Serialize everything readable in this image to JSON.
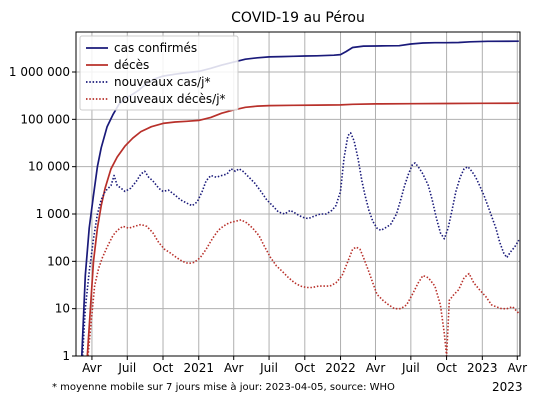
{
  "chart_data": {
    "type": "line",
    "title": "COVID-19 au Pérou",
    "yscale": "log",
    "ylim": [
      1,
      7000000
    ],
    "xlim": [
      "2020-02-20",
      "2023-04-08"
    ],
    "y_ticks": [
      {
        "value": 1,
        "label": "1"
      },
      {
        "value": 10,
        "label": "10"
      },
      {
        "value": 100,
        "label": "100"
      },
      {
        "value": 1000,
        "label": "1 000"
      },
      {
        "value": 10000,
        "label": "10 000"
      },
      {
        "value": 100000,
        "label": "100 000"
      },
      {
        "value": 1000000,
        "label": "1 000 000"
      }
    ],
    "x_ticks": [
      {
        "date": "2020-04-01",
        "label": "Avr"
      },
      {
        "date": "2020-07-01",
        "label": "Juil"
      },
      {
        "date": "2020-10-01",
        "label": "Oct"
      },
      {
        "date": "2021-01-01",
        "label": "2021"
      },
      {
        "date": "2021-04-01",
        "label": "Avr"
      },
      {
        "date": "2021-07-01",
        "label": "Juil"
      },
      {
        "date": "2021-10-01",
        "label": "Oct"
      },
      {
        "date": "2022-01-01",
        "label": "2022"
      },
      {
        "date": "2022-04-01",
        "label": "Avr"
      },
      {
        "date": "2022-07-01",
        "label": "Juil"
      },
      {
        "date": "2022-10-01",
        "label": "Oct"
      },
      {
        "date": "2023-01-01",
        "label": "2023"
      },
      {
        "date": "2023-04-01",
        "label": "Avr"
      }
    ],
    "x_sublabel": "2023",
    "grid": true,
    "legend_position": "top-left",
    "series": [
      {
        "name": "cas confirmés",
        "color": "#1a1a7a",
        "style": "solid",
        "points": [
          [
            "2020-03-06",
            1
          ],
          [
            "2020-03-15",
            50
          ],
          [
            "2020-03-25",
            500
          ],
          [
            "2020-04-05",
            2500
          ],
          [
            "2020-04-15",
            10000
          ],
          [
            "2020-04-25",
            25000
          ],
          [
            "2020-05-10",
            70000
          ],
          [
            "2020-05-25",
            125000
          ],
          [
            "2020-06-10",
            210000
          ],
          [
            "2020-06-25",
            270000
          ],
          [
            "2020-07-15",
            340000
          ],
          [
            "2020-08-01",
            420000
          ],
          [
            "2020-08-20",
            580000
          ],
          [
            "2020-09-10",
            720000
          ],
          [
            "2020-10-01",
            820000
          ],
          [
            "2020-11-01",
            900000
          ],
          [
            "2020-12-01",
            970000
          ],
          [
            "2021-01-01",
            1030000
          ],
          [
            "2021-02-01",
            1200000
          ],
          [
            "2021-03-01",
            1400000
          ],
          [
            "2021-04-01",
            1620000
          ],
          [
            "2021-05-01",
            1860000
          ],
          [
            "2021-06-01",
            2000000
          ],
          [
            "2021-07-01",
            2080000
          ],
          [
            "2021-08-01",
            2120000
          ],
          [
            "2021-09-01",
            2150000
          ],
          [
            "2021-10-01",
            2180000
          ],
          [
            "2021-11-01",
            2200000
          ],
          [
            "2021-12-15",
            2260000
          ],
          [
            "2022-01-01",
            2330000
          ],
          [
            "2022-01-15",
            2700000
          ],
          [
            "2022-02-01",
            3300000
          ],
          [
            "2022-03-01",
            3520000
          ],
          [
            "2022-04-01",
            3550000
          ],
          [
            "2022-05-01",
            3570000
          ],
          [
            "2022-06-01",
            3600000
          ],
          [
            "2022-07-01",
            3900000
          ],
          [
            "2022-08-01",
            4100000
          ],
          [
            "2022-09-01",
            4150000
          ],
          [
            "2022-10-01",
            4160000
          ],
          [
            "2022-11-01",
            4200000
          ],
          [
            "2022-12-01",
            4350000
          ],
          [
            "2023-01-15",
            4450000
          ],
          [
            "2023-04-05",
            4480000
          ]
        ]
      },
      {
        "name": "décès",
        "color": "#b8302a",
        "style": "solid",
        "points": [
          [
            "2020-03-20",
            1
          ],
          [
            "2020-03-28",
            10
          ],
          [
            "2020-04-05",
            100
          ],
          [
            "2020-04-15",
            500
          ],
          [
            "2020-04-25",
            1500
          ],
          [
            "2020-05-05",
            3500
          ],
          [
            "2020-05-20",
            9000
          ],
          [
            "2020-06-05",
            16000
          ],
          [
            "2020-06-25",
            27000
          ],
          [
            "2020-07-15",
            40000
          ],
          [
            "2020-08-05",
            55000
          ],
          [
            "2020-09-01",
            70000
          ],
          [
            "2020-10-01",
            82000
          ],
          [
            "2020-11-01",
            88000
          ],
          [
            "2020-12-01",
            91000
          ],
          [
            "2021-01-01",
            95000
          ],
          [
            "2021-02-01",
            110000
          ],
          [
            "2021-03-01",
            135000
          ],
          [
            "2021-04-01",
            158000
          ],
          [
            "2021-05-01",
            180000
          ],
          [
            "2021-06-01",
            190000
          ],
          [
            "2021-07-01",
            195000
          ],
          [
            "2021-09-01",
            198000
          ],
          [
            "2021-11-01",
            200000
          ],
          [
            "2022-01-01",
            202000
          ],
          [
            "2022-02-01",
            208000
          ],
          [
            "2022-04-01",
            212000
          ],
          [
            "2022-07-01",
            214000
          ],
          [
            "2022-10-01",
            216000
          ],
          [
            "2023-01-01",
            218000
          ],
          [
            "2023-04-05",
            219500
          ]
        ]
      },
      {
        "name": "nouveaux cas/j*",
        "color": "#1a1a7a",
        "style": "dotted",
        "points": [
          [
            "2020-03-08",
            1
          ],
          [
            "2020-03-15",
            10
          ],
          [
            "2020-03-25",
            60
          ],
          [
            "2020-04-05",
            300
          ],
          [
            "2020-04-15",
            1000
          ],
          [
            "2020-04-25",
            2000
          ],
          [
            "2020-05-05",
            3000
          ],
          [
            "2020-05-20",
            4000
          ],
          [
            "2020-05-28",
            6500
          ],
          [
            "2020-06-05",
            4000
          ],
          [
            "2020-06-15",
            3500
          ],
          [
            "2020-06-25",
            3000
          ],
          [
            "2020-07-10",
            3500
          ],
          [
            "2020-07-25",
            5000
          ],
          [
            "2020-08-05",
            7000
          ],
          [
            "2020-08-15",
            8000
          ],
          [
            "2020-08-25",
            6000
          ],
          [
            "2020-09-05",
            5000
          ],
          [
            "2020-09-20",
            3500
          ],
          [
            "2020-10-01",
            3000
          ],
          [
            "2020-10-15",
            3200
          ],
          [
            "2020-11-01",
            2500
          ],
          [
            "2020-11-15",
            2000
          ],
          [
            "2020-12-01",
            1700
          ],
          [
            "2020-12-15",
            1500
          ],
          [
            "2020-12-28",
            1800
          ],
          [
            "2021-01-10",
            3000
          ],
          [
            "2021-01-20",
            5000
          ],
          [
            "2021-02-01",
            6500
          ],
          [
            "2021-02-15",
            6000
          ],
          [
            "2021-03-01",
            6500
          ],
          [
            "2021-03-15",
            7000
          ],
          [
            "2021-03-25",
            9000
          ],
          [
            "2021-04-05",
            8000
          ],
          [
            "2021-04-15",
            9000
          ],
          [
            "2021-04-25",
            8000
          ],
          [
            "2021-05-10",
            6000
          ],
          [
            "2021-05-25",
            4500
          ],
          [
            "2021-06-10",
            3000
          ],
          [
            "2021-06-25",
            2000
          ],
          [
            "2021-07-10",
            1500
          ],
          [
            "2021-07-25",
            1100
          ],
          [
            "2021-08-10",
            1000
          ],
          [
            "2021-08-25",
            1200
          ],
          [
            "2021-09-10",
            1000
          ],
          [
            "2021-09-25",
            850
          ],
          [
            "2021-10-10",
            800
          ],
          [
            "2021-10-25",
            900
          ],
          [
            "2021-11-10",
            1000
          ],
          [
            "2021-11-25",
            1000
          ],
          [
            "2021-12-10",
            1200
          ],
          [
            "2021-12-20",
            1500
          ],
          [
            "2022-01-01",
            3000
          ],
          [
            "2022-01-10",
            15000
          ],
          [
            "2022-01-20",
            45000
          ],
          [
            "2022-01-27",
            52000
          ],
          [
            "2022-02-05",
            35000
          ],
          [
            "2022-02-15",
            15000
          ],
          [
            "2022-02-25",
            5000
          ],
          [
            "2022-03-05",
            2500
          ],
          [
            "2022-03-15",
            1200
          ],
          [
            "2022-03-25",
            700
          ],
          [
            "2022-04-05",
            500
          ],
          [
            "2022-04-15",
            450
          ],
          [
            "2022-04-25",
            500
          ],
          [
            "2022-05-10",
            600
          ],
          [
            "2022-05-25",
            1000
          ],
          [
            "2022-06-05",
            2000
          ],
          [
            "2022-06-15",
            4000
          ],
          [
            "2022-06-25",
            7000
          ],
          [
            "2022-07-05",
            11000
          ],
          [
            "2022-07-12",
            12000
          ],
          [
            "2022-07-20",
            10000
          ],
          [
            "2022-08-01",
            7000
          ],
          [
            "2022-08-15",
            4000
          ],
          [
            "2022-08-25",
            2000
          ],
          [
            "2022-09-05",
            800
          ],
          [
            "2022-09-15",
            400
          ],
          [
            "2022-09-25",
            300
          ],
          [
            "2022-10-05",
            500
          ],
          [
            "2022-10-15",
            1200
          ],
          [
            "2022-10-25",
            3000
          ],
          [
            "2022-11-05",
            6000
          ],
          [
            "2022-11-15",
            9000
          ],
          [
            "2022-11-25",
            10000
          ],
          [
            "2022-12-05",
            8000
          ],
          [
            "2022-12-15",
            6000
          ],
          [
            "2022-12-25",
            4000
          ],
          [
            "2023-01-05",
            2500
          ],
          [
            "2023-01-15",
            1500
          ],
          [
            "2023-01-25",
            900
          ],
          [
            "2023-02-05",
            500
          ],
          [
            "2023-02-15",
            250
          ],
          [
            "2023-02-25",
            150
          ],
          [
            "2023-03-05",
            120
          ],
          [
            "2023-03-15",
            160
          ],
          [
            "2023-03-25",
            200
          ],
          [
            "2023-04-05",
            280
          ]
        ]
      },
      {
        "name": "nouveaux décès/j*",
        "color": "#b8302a",
        "style": "dotted",
        "points": [
          [
            "2020-03-22",
            1
          ],
          [
            "2020-03-30",
            5
          ],
          [
            "2020-04-08",
            30
          ],
          [
            "2020-04-18",
            70
          ],
          [
            "2020-04-28",
            120
          ],
          [
            "2020-05-10",
            200
          ],
          [
            "2020-05-25",
            350
          ],
          [
            "2020-06-05",
            450
          ],
          [
            "2020-06-20",
            550
          ],
          [
            "2020-07-05",
            500
          ],
          [
            "2020-07-20",
            550
          ],
          [
            "2020-08-05",
            600
          ],
          [
            "2020-08-20",
            550
          ],
          [
            "2020-09-05",
            400
          ],
          [
            "2020-09-20",
            250
          ],
          [
            "2020-10-05",
            180
          ],
          [
            "2020-10-20",
            150
          ],
          [
            "2020-11-05",
            120
          ],
          [
            "2020-11-20",
            100
          ],
          [
            "2020-12-05",
            90
          ],
          [
            "2020-12-20",
            95
          ],
          [
            "2021-01-05",
            120
          ],
          [
            "2021-01-20",
            180
          ],
          [
            "2021-02-05",
            300
          ],
          [
            "2021-02-20",
            450
          ],
          [
            "2021-03-05",
            550
          ],
          [
            "2021-03-20",
            650
          ],
          [
            "2021-04-05",
            700
          ],
          [
            "2021-04-20",
            750
          ],
          [
            "2021-05-05",
            650
          ],
          [
            "2021-05-20",
            500
          ],
          [
            "2021-06-05",
            350
          ],
          [
            "2021-06-20",
            200
          ],
          [
            "2021-07-05",
            120
          ],
          [
            "2021-07-20",
            80
          ],
          [
            "2021-08-05",
            60
          ],
          [
            "2021-08-20",
            45
          ],
          [
            "2021-09-05",
            35
          ],
          [
            "2021-09-20",
            30
          ],
          [
            "2021-10-05",
            28
          ],
          [
            "2021-10-20",
            28
          ],
          [
            "2021-11-05",
            30
          ],
          [
            "2021-11-20",
            30
          ],
          [
            "2021-12-05",
            30
          ],
          [
            "2021-12-20",
            35
          ],
          [
            "2022-01-05",
            50
          ],
          [
            "2022-01-20",
            100
          ],
          [
            "2022-02-01",
            180
          ],
          [
            "2022-02-10",
            200
          ],
          [
            "2022-02-20",
            180
          ],
          [
            "2022-03-01",
            120
          ],
          [
            "2022-03-15",
            60
          ],
          [
            "2022-03-25",
            35
          ],
          [
            "2022-04-05",
            20
          ],
          [
            "2022-04-20",
            15
          ],
          [
            "2022-05-05",
            12
          ],
          [
            "2022-05-20",
            10
          ],
          [
            "2022-06-05",
            10
          ],
          [
            "2022-06-20",
            12
          ],
          [
            "2022-07-05",
            20
          ],
          [
            "2022-07-20",
            35
          ],
          [
            "2022-08-01",
            50
          ],
          [
            "2022-08-15",
            45
          ],
          [
            "2022-09-01",
            30
          ],
          [
            "2022-09-15",
            12
          ],
          [
            "2022-09-25",
            3
          ],
          [
            "2022-10-01",
            1
          ],
          [
            "2022-10-08",
            15
          ],
          [
            "2022-10-20",
            20
          ],
          [
            "2022-11-01",
            25
          ],
          [
            "2022-11-15",
            45
          ],
          [
            "2022-11-28",
            55
          ],
          [
            "2022-12-10",
            35
          ],
          [
            "2022-12-25",
            25
          ],
          [
            "2023-01-10",
            18
          ],
          [
            "2023-01-25",
            12
          ],
          [
            "2023-02-05",
            11
          ],
          [
            "2023-02-20",
            10
          ],
          [
            "2023-03-05",
            10
          ],
          [
            "2023-03-20",
            11
          ],
          [
            "2023-04-05",
            8
          ]
        ]
      }
    ],
    "footnote": "* moyenne mobile sur 7 jours  mise à jour: 2023-04-05, source: WHO"
  }
}
